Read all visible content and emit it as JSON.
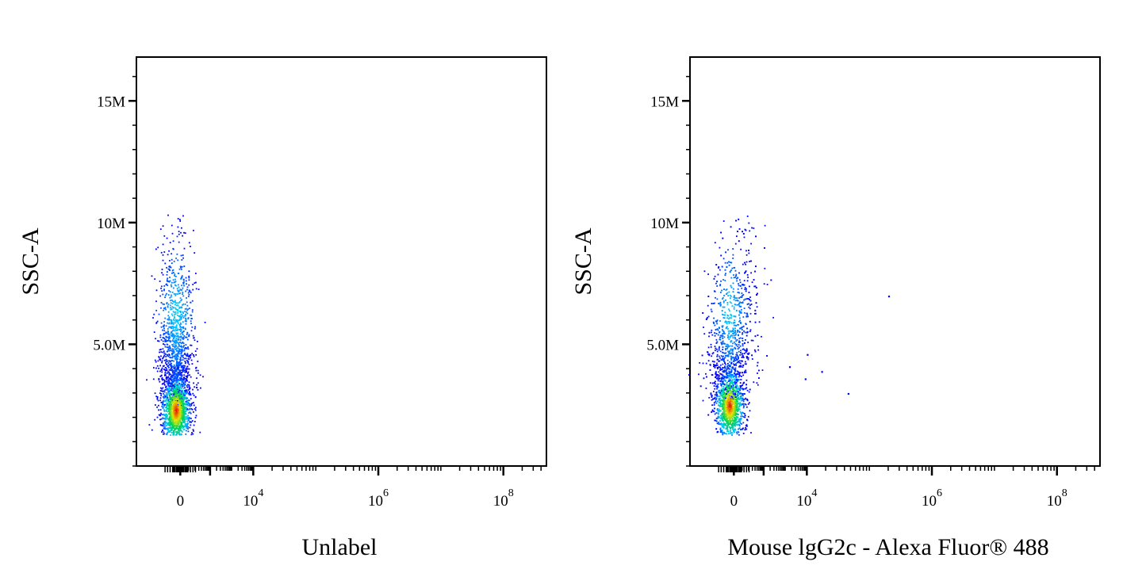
{
  "chart_data": [
    {
      "type": "scatter",
      "title": "",
      "xlabel": "Unlabel",
      "ylabel": "SSC-A",
      "xscale": "biexponential",
      "ylim": [
        0,
        16800000
      ],
      "yticks": [
        {
          "value": 5000000,
          "label": "5.0M"
        },
        {
          "value": 10000000,
          "label": "10M"
        },
        {
          "value": 15000000,
          "label": "15M"
        }
      ],
      "xticks": [
        {
          "value": 0,
          "label": "0"
        },
        {
          "value": 10000,
          "label": "10",
          "exp": "4"
        },
        {
          "value": 1000000,
          "label": "10",
          "exp": "6"
        },
        {
          "value": 100000000,
          "label": "10",
          "exp": "8"
        }
      ],
      "grid": false,
      "coloring": "density (blue-cyan-green-yellow-red)",
      "populations": [
        {
          "name": "",
          "x_center": 0,
          "y_center": 2300000,
          "y_min": 1300000,
          "y_max": 10400000,
          "density_peak_y": 2300000
        }
      ],
      "outliers": []
    },
    {
      "type": "scatter",
      "title": "",
      "xlabel": "Mouse lgG2c - Alexa Fluor® 488",
      "ylabel": "SSC-A",
      "xscale": "biexponential",
      "ylim": [
        0,
        16800000
      ],
      "yticks": [
        {
          "value": 5000000,
          "label": "5.0M"
        },
        {
          "value": 10000000,
          "label": "10M"
        },
        {
          "value": 15000000,
          "label": "15M"
        }
      ],
      "xticks": [
        {
          "value": 0,
          "label": "0"
        },
        {
          "value": 10000,
          "label": "10",
          "exp": "4"
        },
        {
          "value": 1000000,
          "label": "10",
          "exp": "6"
        },
        {
          "value": 100000000,
          "label": "10",
          "exp": "8"
        }
      ],
      "grid": false,
      "coloring": "density (blue-cyan-green-yellow-red)",
      "populations": [
        {
          "name": "",
          "x_center": 0,
          "y_center": 2500000,
          "y_min": 1300000,
          "y_max": 10300000,
          "density_peak_y": 2500000
        }
      ],
      "outliers": [
        {
          "x": 8000,
          "y": 3600000
        },
        {
          "x": 10000,
          "y": 4600000
        },
        {
          "x": 17000,
          "y": 3900000
        },
        {
          "x": 45000,
          "y": 3000000
        },
        {
          "x": 200000,
          "y": 7000000
        },
        {
          "x": 1500,
          "y": 4100000
        }
      ]
    }
  ]
}
